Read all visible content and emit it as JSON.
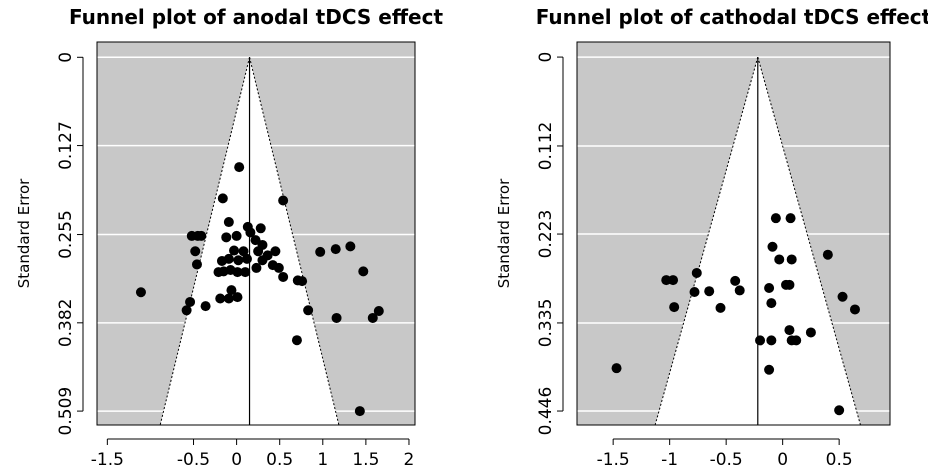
{
  "chart_data": [
    {
      "type": "funnel",
      "title": "Funnel plot of anodal tDCS effect",
      "ylabel": "Standard Error",
      "x": [
        -1.11,
        0.03,
        -0.16,
        0.54,
        -0.09,
        0.13,
        0.28,
        0.0,
        -0.12,
        0.16,
        0.22,
        0.3,
        0.25,
        0.08,
        -0.03,
        -0.17,
        -0.09,
        0.02,
        0.12,
        0.36,
        0.45,
        0.42,
        0.3,
        -0.48,
        -0.52,
        -0.45,
        -0.41,
        -0.46,
        -0.15,
        -0.07,
        0.01,
        0.1,
        -0.21,
        -0.06,
        0.01,
        -0.09,
        -0.19,
        -0.54,
        -0.58,
        -0.36,
        0.71,
        0.76,
        0.83,
        0.7,
        0.97,
        1.15,
        1.32,
        1.47,
        1.16,
        1.58,
        1.65,
        1.43,
        0.49,
        0.54,
        0.23
      ],
      "values": [
        0.338,
        0.158,
        0.203,
        0.206,
        0.237,
        0.244,
        0.246,
        0.257,
        0.259,
        0.252,
        0.263,
        0.27,
        0.279,
        0.279,
        0.278,
        0.293,
        0.29,
        0.292,
        0.29,
        0.285,
        0.279,
        0.299,
        0.292,
        0.279,
        0.257,
        0.257,
        0.257,
        0.298,
        0.308,
        0.306,
        0.309,
        0.309,
        0.309,
        0.335,
        0.345,
        0.347,
        0.347,
        0.352,
        0.364,
        0.358,
        0.321,
        0.322,
        0.364,
        0.407,
        0.28,
        0.276,
        0.272,
        0.308,
        0.375,
        0.375,
        0.365,
        0.509,
        0.303,
        0.316,
        0.303
      ],
      "summary": 0.15,
      "color": "#000000",
      "background": "#c8c8c8",
      "xlim": [
        -1.62,
        2.07
      ],
      "xticks": [
        -1.5,
        -0.5,
        0,
        0.5,
        1,
        1.5,
        2
      ],
      "ylim": [
        -0.022,
        0.529
      ],
      "y_inverted": true,
      "yticks": [
        0,
        0.127,
        0.255,
        0.382,
        0.509
      ],
      "grid": true
    },
    {
      "type": "funnel",
      "title": "Funnel plot of cathodal tDCS effect",
      "ylabel": "Standard Error",
      "x": [
        -1.47,
        -1.03,
        -0.97,
        -0.76,
        -0.78,
        -0.65,
        -0.96,
        -0.55,
        -0.42,
        -0.38,
        -0.06,
        0.07,
        -0.09,
        -0.03,
        0.08,
        -0.12,
        0.03,
        0.06,
        -0.1,
        0.4,
        0.53,
        0.64,
        -0.2,
        -0.1,
        0.06,
        0.08,
        0.12,
        0.25,
        -0.12,
        0.5
      ],
      "values": [
        0.392,
        0.281,
        0.281,
        0.272,
        0.296,
        0.295,
        0.315,
        0.316,
        0.282,
        0.294,
        0.203,
        0.203,
        0.239,
        0.255,
        0.255,
        0.291,
        0.287,
        0.287,
        0.31,
        0.249,
        0.302,
        0.318,
        0.357,
        0.357,
        0.344,
        0.357,
        0.357,
        0.347,
        0.394,
        0.445
      ],
      "summary": -0.22,
      "color": "#000000",
      "background": "#c8c8c8",
      "xlim": [
        -1.82,
        0.95
      ],
      "xticks": [
        -1.5,
        -1,
        -0.5,
        0,
        0.5
      ],
      "ylim": [
        -0.019,
        0.4636
      ],
      "y_inverted": true,
      "yticks": [
        0,
        0.112,
        0.223,
        0.335,
        0.446
      ],
      "grid": true
    }
  ]
}
